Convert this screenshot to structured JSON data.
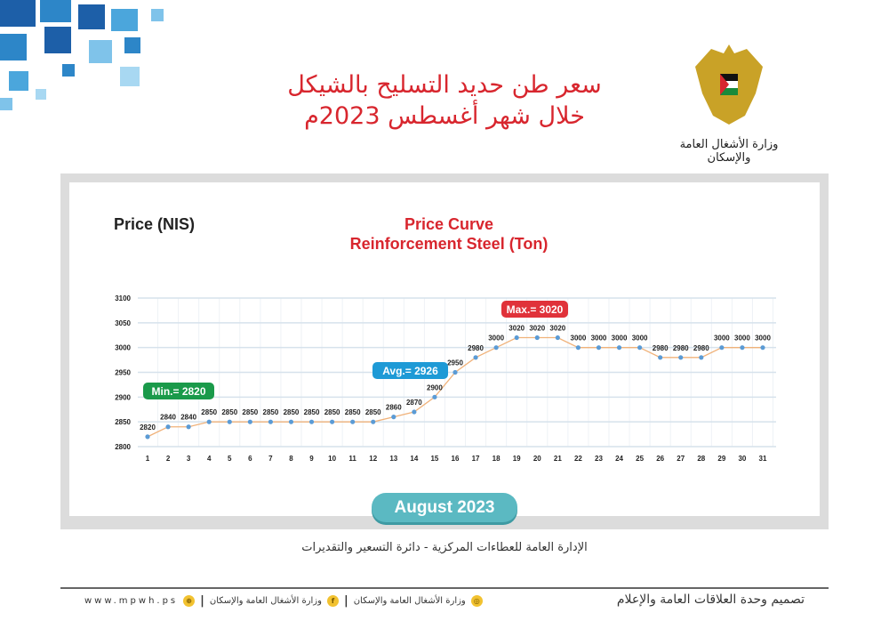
{
  "header": {
    "title_line1": "سعر طن حديد التسليح بالشيكل",
    "title_line2": "خلال شهر أغسطس 2023م",
    "ministry_name": "وزارة الأشغال العامة والإسكان"
  },
  "chart_data": {
    "type": "line",
    "title": "Price Curve",
    "subtitle": "Reinforcement Steel (Ton)",
    "ylabel": "Price (NIS)",
    "xlabel": "",
    "ylim": [
      2800,
      3100
    ],
    "yticks": [
      2800,
      2850,
      2900,
      2950,
      3000,
      3050,
      3100
    ],
    "grid": true,
    "x": [
      1,
      2,
      3,
      4,
      5,
      6,
      7,
      8,
      9,
      10,
      11,
      12,
      13,
      14,
      15,
      16,
      17,
      18,
      19,
      20,
      21,
      22,
      23,
      24,
      25,
      26,
      27,
      28,
      29,
      30,
      31
    ],
    "values": [
      2820,
      2840,
      2840,
      2850,
      2850,
      2850,
      2850,
      2850,
      2850,
      2850,
      2850,
      2850,
      2860,
      2870,
      2900,
      2950,
      2980,
      3000,
      3020,
      3020,
      3020,
      3000,
      3000,
      3000,
      3000,
      2980,
      2980,
      2980,
      3000,
      3000,
      3000
    ],
    "annotations": [
      {
        "label": "Min.= 2820",
        "color": "#1a9a4a"
      },
      {
        "label": "Avg.= 2926",
        "color": "#1e9ad6"
      },
      {
        "label": "Max.= 3020",
        "color": "#e0323a"
      }
    ],
    "line_color": "#f0b27a",
    "marker_color": "#5b9bd5"
  },
  "month_label": "August  2023",
  "department": "الإدارة العامة للعطاءات المركزية - دائرة التسعير والتقديرات",
  "footer": {
    "design_credit": "تصميم وحدة العلاقات العامة والإعلام",
    "website": "www.mpwh.ps",
    "facebook": "وزارة الأشغال العامة والإسكان",
    "instagram": "وزارة الأشغال العامة والإسكان"
  }
}
